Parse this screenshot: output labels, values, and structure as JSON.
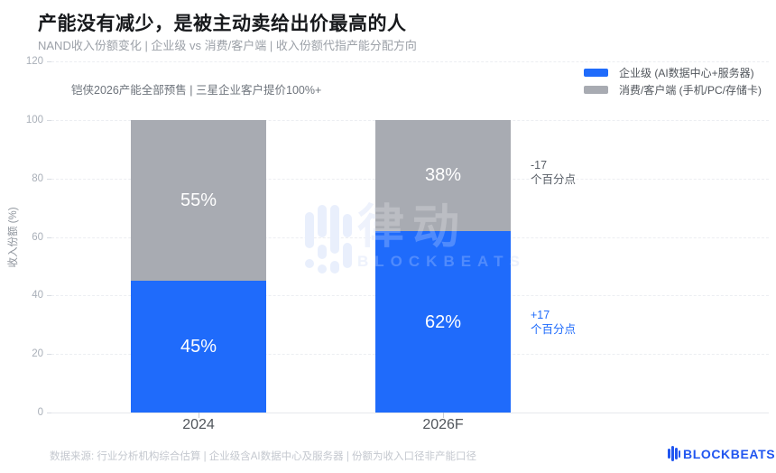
{
  "header": {
    "title": "产能没有减少，是被主动卖给出价最高的人",
    "subtitle": "NAND收入份额变化 | 企业级 vs 消费/客户端 | 收入份额代指产能分配方向"
  },
  "chart_data": {
    "type": "bar",
    "stacked": true,
    "title": "产能没有减少，是被主动卖给出价最高的人",
    "subtitle": "NAND收入份额变化 | 企业级 vs 消费/客户端 | 收入份额代指产能分配方向",
    "annotation": "铠侠2026产能全部预售 | 三星企业客户提价100%+",
    "categories": [
      "2024",
      "2026F"
    ],
    "ylabel": "收入份额 (%)",
    "ylim": [
      0,
      120
    ],
    "yticks": [
      0,
      20,
      40,
      60,
      80,
      100,
      120
    ],
    "grid": "on",
    "legend_position": "top-right",
    "series": [
      {
        "name": "企业级 (AI数据中心+服务器)",
        "color": "#1F6BFB",
        "values": [
          45,
          62
        ]
      },
      {
        "name": "消费/客户端 (手机/PC/存储卡)",
        "color": "#A8ABB2",
        "values": [
          55,
          38
        ]
      }
    ],
    "bar_label_suffix": "%",
    "delta_annotations": [
      {
        "lines": [
          "-17",
          "个百分点"
        ],
        "color": "#5A6068"
      },
      {
        "lines": [
          "+17",
          "个百分点"
        ],
        "color": "#1F6BFB"
      }
    ]
  },
  "watermark": {
    "cn": "律动",
    "en": "BLOCKBEATS"
  },
  "footer": {
    "source": "数据来源: 行业分析机构综合估算 | 企业级含AI数据中心及服务器 | 份额为收入口径非产能口径",
    "brand": "BLOCKBEATS"
  },
  "colors": {
    "enterprise_blue": "#1F6BFB",
    "consumer_gray": "#A8ABB2",
    "brand_blue": "#2156F0"
  }
}
